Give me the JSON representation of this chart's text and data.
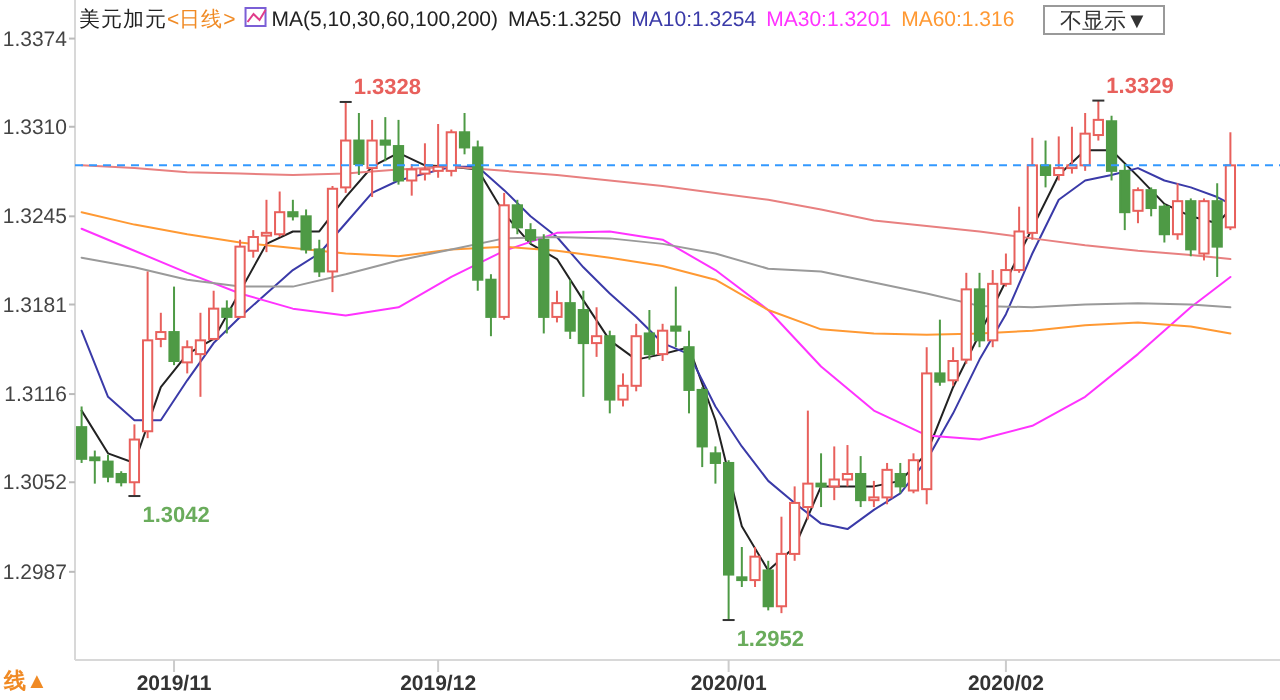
{
  "chart_data": {
    "type": "candlestick",
    "title": "美元加元",
    "subtitle": "<日线>",
    "legend_title": "MA(5,10,30,60,100,200)",
    "legend": "top",
    "grid": false,
    "categories": [
      null,
      null,
      null,
      null,
      null,
      null,
      null,
      "2019/11",
      null,
      null,
      null,
      null,
      null,
      null,
      null,
      null,
      null,
      null,
      null,
      null,
      null,
      null,
      null,
      null,
      null,
      null,
      null,
      "2019/12",
      null,
      null,
      null,
      null,
      null,
      null,
      null,
      null,
      null,
      null,
      null,
      null,
      null,
      null,
      null,
      null,
      null,
      null,
      null,
      null,
      null,
      "2020/01",
      null,
      null,
      null,
      null,
      null,
      null,
      null,
      null,
      null,
      null,
      null,
      null,
      null,
      null,
      null,
      null,
      null,
      null,
      null,
      null,
      "2020/02",
      null,
      null,
      null,
      null,
      null,
      null,
      null,
      null,
      null,
      null,
      null,
      null,
      null,
      null,
      null,
      null,
      null
    ],
    "ohlc": [
      [
        1.3092,
        1.3107,
        1.3066,
        1.3069
      ],
      [
        1.307,
        1.3075,
        1.3051,
        1.3068
      ],
      [
        1.3067,
        1.3072,
        1.3052,
        1.3056
      ],
      [
        1.3058,
        1.306,
        1.3049,
        1.3052
      ],
      [
        1.3052,
        1.3094,
        1.3042,
        1.3083
      ],
      [
        1.3089,
        1.3205,
        1.3084,
        1.3155
      ],
      [
        1.3156,
        1.3175,
        1.315,
        1.3161
      ],
      [
        1.3161,
        1.3194,
        1.3137,
        1.314
      ],
      [
        1.3139,
        1.3155,
        1.3131,
        1.315
      ],
      [
        1.3145,
        1.3175,
        1.3114,
        1.3155
      ],
      [
        1.3156,
        1.3191,
        1.3155,
        1.3178
      ],
      [
        1.3178,
        1.3184,
        1.316,
        1.3172
      ],
      [
        1.3172,
        1.3228,
        1.3171,
        1.3223
      ],
      [
        1.322,
        1.3235,
        1.3215,
        1.323
      ],
      [
        1.3231,
        1.3257,
        1.3219,
        1.3233
      ],
      [
        1.3232,
        1.3263,
        1.323,
        1.3248
      ],
      [
        1.3248,
        1.3257,
        1.3242,
        1.3245
      ],
      [
        1.3245,
        1.325,
        1.3218,
        1.3221
      ],
      [
        1.3221,
        1.3228,
        1.3201,
        1.3205
      ],
      [
        1.3205,
        1.3267,
        1.319,
        1.3265
      ],
      [
        1.3266,
        1.3328,
        1.3262,
        1.33
      ],
      [
        1.33,
        1.332,
        1.3275,
        1.3283
      ],
      [
        1.328,
        1.3315,
        1.3259,
        1.33
      ],
      [
        1.33,
        1.3317,
        1.3285,
        1.3297
      ],
      [
        1.3296,
        1.3315,
        1.3268,
        1.3271
      ],
      [
        1.3271,
        1.3283,
        1.326,
        1.3279
      ],
      [
        1.3276,
        1.3298,
        1.3271,
        1.3279
      ],
      [
        1.3278,
        1.3312,
        1.3273,
        1.3281
      ],
      [
        1.3278,
        1.3308,
        1.3274,
        1.3306
      ],
      [
        1.3306,
        1.332,
        1.329,
        1.3295
      ],
      [
        1.3295,
        1.33,
        1.3191,
        1.3199
      ],
      [
        1.3199,
        1.3203,
        1.3158,
        1.3172
      ],
      [
        1.3172,
        1.3262,
        1.317,
        1.3253
      ],
      [
        1.3253,
        1.3257,
        1.3232,
        1.3237
      ],
      [
        1.3235,
        1.324,
        1.3225,
        1.3228
      ],
      [
        1.3228,
        1.3232,
        1.316,
        1.3172
      ],
      [
        1.3172,
        1.3191,
        1.3168,
        1.3182
      ],
      [
        1.3182,
        1.3199,
        1.3156,
        1.3162
      ],
      [
        1.3177,
        1.3191,
        1.3114,
        1.3153
      ],
      [
        1.3153,
        1.3179,
        1.3143,
        1.3158
      ],
      [
        1.3158,
        1.3162,
        1.3102,
        1.3112
      ],
      [
        1.3112,
        1.3131,
        1.3107,
        1.3122
      ],
      [
        1.3122,
        1.3167,
        1.3118,
        1.3158
      ],
      [
        1.316,
        1.3177,
        1.3141,
        1.3145
      ],
      [
        1.3145,
        1.3167,
        1.314,
        1.3162
      ],
      [
        1.3165,
        1.3194,
        1.315,
        1.3162
      ],
      [
        1.315,
        1.3162,
        1.3102,
        1.3119
      ],
      [
        1.3119,
        1.3121,
        1.3063,
        1.3078
      ],
      [
        1.3073,
        1.3078,
        1.3051,
        1.3066
      ],
      [
        1.3066,
        1.3068,
        1.2952,
        1.2985
      ],
      [
        1.2983,
        1.3005,
        1.2976,
        1.2981
      ],
      [
        1.2981,
        1.3005,
        1.2976,
        1.2998
      ],
      [
        1.2988,
        1.2995,
        1.2959,
        1.2962
      ],
      [
        1.2962,
        1.3027,
        1.2957,
        1.3
      ],
      [
        1.3,
        1.3049,
        1.2995,
        1.3037
      ],
      [
        1.3034,
        1.3104,
        1.3025,
        1.3051
      ],
      [
        1.3051,
        1.3073,
        1.3034,
        1.3049
      ],
      [
        1.3049,
        1.3078,
        1.3039,
        1.3054
      ],
      [
        1.3054,
        1.3079,
        1.3049,
        1.3058
      ],
      [
        1.3058,
        1.3071,
        1.3034,
        1.3039
      ],
      [
        1.3039,
        1.3053,
        1.3034,
        1.3041
      ],
      [
        1.3041,
        1.3066,
        1.3036,
        1.3061
      ],
      [
        1.3058,
        1.3066,
        1.3044,
        1.3049
      ],
      [
        1.3046,
        1.3073,
        1.3044,
        1.3068
      ],
      [
        1.3047,
        1.315,
        1.3036,
        1.3131
      ],
      [
        1.3131,
        1.317,
        1.3122,
        1.3125
      ],
      [
        1.3126,
        1.315,
        1.3122,
        1.314
      ],
      [
        1.3141,
        1.3204,
        1.3138,
        1.3192
      ],
      [
        1.3192,
        1.3204,
        1.315,
        1.3155
      ],
      [
        1.3155,
        1.3206,
        1.315,
        1.3196
      ],
      [
        1.3196,
        1.3218,
        1.3194,
        1.3206
      ],
      [
        1.3206,
        1.3252,
        1.3204,
        1.3234
      ],
      [
        1.3233,
        1.3302,
        1.3228,
        1.3282
      ],
      [
        1.3282,
        1.33,
        1.3266,
        1.3275
      ],
      [
        1.3275,
        1.3303,
        1.3271,
        1.328
      ],
      [
        1.328,
        1.331,
        1.3276,
        1.3282
      ],
      [
        1.3282,
        1.332,
        1.3278,
        1.3305
      ],
      [
        1.3304,
        1.3329,
        1.33,
        1.3315
      ],
      [
        1.3314,
        1.3318,
        1.3271,
        1.3278
      ],
      [
        1.3278,
        1.3283,
        1.3235,
        1.3248
      ],
      [
        1.3249,
        1.3266,
        1.324,
        1.3264
      ],
      [
        1.3264,
        1.3266,
        1.3245,
        1.3251
      ],
      [
        1.3252,
        1.3254,
        1.3226,
        1.3232
      ],
      [
        1.3232,
        1.3269,
        1.3228,
        1.3256
      ],
      [
        1.3256,
        1.3258,
        1.3216,
        1.3221
      ],
      [
        1.3218,
        1.3258,
        1.3213,
        1.3256
      ],
      [
        1.3256,
        1.3269,
        1.3201,
        1.3223
      ],
      [
        1.3237,
        1.3306,
        1.3235,
        1.3282
      ]
    ],
    "series": [
      {
        "type": "line",
        "name": "MA5:1.3250",
        "color": "#222222",
        "values": [
          1.3104,
          null,
          1.3073,
          null,
          1.3066,
          null,
          1.3121,
          null,
          1.3145,
          null,
          1.3156,
          null,
          null,
          null,
          1.3225,
          null,
          1.3234,
          null,
          1.3234,
          null,
          1.3259,
          null,
          1.3281,
          null,
          1.3291,
          null,
          1.3282,
          null,
          1.3281,
          null,
          1.3279,
          null,
          1.3247,
          null,
          1.3225,
          null,
          1.3214,
          null,
          1.3184,
          null,
          1.3155,
          null,
          1.3141,
          null,
          1.3145,
          null,
          1.315,
          null,
          1.3097,
          null,
          1.302,
          null,
          1.2988,
          null,
          1.3005,
          null,
          1.3049,
          null,
          1.3049,
          null,
          1.3049,
          null,
          1.3053,
          null,
          1.3073,
          null,
          1.3121,
          null,
          null,
          null,
          null,
          null,
          null,
          null,
          1.3275,
          null,
          1.3293,
          null,
          1.3293,
          null,
          1.3274,
          null,
          1.3254,
          null,
          1.3245,
          null,
          1.324,
          1.325
        ]
      },
      {
        "type": "line",
        "name": "MA10:1.3254",
        "color": "#3a3aa8",
        "values": [
          1.3162,
          null,
          1.3114,
          null,
          1.3097,
          null,
          1.3097,
          null,
          1.3126,
          null,
          1.3153,
          null,
          1.3172,
          null,
          1.3189,
          null,
          1.3206,
          null,
          1.3218,
          null,
          1.324,
          null,
          1.3262,
          null,
          1.3271,
          null,
          1.3276,
          null,
          1.3281,
          null,
          1.3281,
          null,
          1.3264,
          null,
          1.3245,
          null,
          1.323,
          null,
          1.3208,
          null,
          1.3189,
          null,
          1.3172,
          null,
          1.3153,
          null,
          1.3145,
          null,
          1.3107,
          null,
          1.3078,
          null,
          1.3053,
          null,
          1.3037,
          null,
          1.3022,
          null,
          1.3018,
          null,
          1.3032,
          null,
          1.3044,
          null,
          1.3068,
          null,
          1.3102,
          null,
          1.3141,
          null,
          1.3174,
          null,
          1.3218,
          null,
          1.3257,
          null,
          1.3271,
          null,
          1.3275,
          null,
          1.328,
          null,
          1.3271,
          null,
          1.3266,
          null,
          1.3259,
          1.3254
        ]
      },
      {
        "type": "line",
        "name": "MA30:1.3201",
        "color": "#ff33ff",
        "values": [
          1.3236,
          null,
          null,
          null,
          1.322,
          null,
          null,
          null,
          1.3204,
          null,
          null,
          null,
          1.3189,
          null,
          null,
          null,
          1.3178,
          null,
          null,
          null,
          1.3173,
          null,
          null,
          null,
          1.3179,
          null,
          null,
          null,
          1.3201,
          null,
          null,
          null,
          1.322,
          null,
          null,
          null,
          1.3233,
          null,
          null,
          null,
          1.3234,
          null,
          null,
          null,
          1.3228,
          null,
          null,
          null,
          1.3206,
          null,
          null,
          null,
          1.3177,
          null,
          null,
          null,
          1.3136,
          null,
          null,
          null,
          1.3104,
          null,
          null,
          null,
          1.3086,
          null,
          null,
          null,
          1.3083,
          null,
          null,
          null,
          1.3093,
          null,
          null,
          null,
          1.3114,
          null,
          null,
          null,
          1.3145,
          null,
          null,
          null,
          1.3179,
          null,
          null,
          1.3201
        ]
      },
      {
        "type": "line",
        "name": "MA60:1.316",
        "color": "#ff9933",
        "values": [
          1.3248,
          null,
          null,
          null,
          1.3239,
          null,
          null,
          null,
          1.3232,
          null,
          null,
          null,
          1.3226,
          null,
          null,
          null,
          1.3222,
          null,
          null,
          null,
          1.3218,
          null,
          null,
          null,
          1.3216,
          null,
          null,
          null,
          1.3221,
          null,
          null,
          null,
          1.3223,
          null,
          null,
          null,
          1.322,
          null,
          null,
          null,
          1.3215,
          null,
          null,
          null,
          1.3209,
          null,
          null,
          null,
          1.3199,
          null,
          null,
          null,
          1.3177,
          null,
          null,
          null,
          1.3163,
          null,
          null,
          null,
          1.316,
          null,
          null,
          null,
          1.3159,
          null,
          null,
          null,
          1.316,
          null,
          null,
          null,
          1.3162,
          null,
          null,
          null,
          1.3166,
          null,
          null,
          null,
          1.3168,
          null,
          null,
          null,
          1.3165,
          null,
          null,
          1.316
        ]
      },
      {
        "type": "line",
        "color": "#9a9a9a",
        "values": [
          1.3215,
          null,
          null,
          null,
          1.3208,
          null,
          null,
          null,
          1.3199,
          null,
          null,
          null,
          1.3194,
          null,
          null,
          null,
          1.3194,
          null,
          null,
          null,
          1.3203,
          null,
          null,
          null,
          1.3213,
          null,
          null,
          null,
          1.3221,
          null,
          null,
          null,
          1.3229,
          null,
          null,
          null,
          1.323,
          null,
          null,
          null,
          1.3229,
          null,
          null,
          null,
          1.3225,
          null,
          null,
          null,
          1.3218,
          null,
          null,
          null,
          1.3207,
          null,
          null,
          null,
          1.3205,
          null,
          null,
          null,
          1.3197,
          null,
          null,
          null,
          1.3189,
          null,
          null,
          null,
          1.318,
          null,
          null,
          null,
          1.3179,
          null,
          null,
          null,
          1.3181,
          null,
          null,
          null,
          1.3182,
          null,
          null,
          null,
          1.3181,
          null,
          null,
          1.3179
        ]
      },
      {
        "type": "line",
        "color": "#e88080",
        "values": [
          1.3282,
          null,
          null,
          null,
          1.328,
          null,
          null,
          null,
          1.3277,
          null,
          null,
          null,
          1.3276,
          null,
          null,
          null,
          1.3275,
          null,
          null,
          null,
          1.3276,
          null,
          null,
          null,
          1.3279,
          null,
          null,
          null,
          1.3281,
          null,
          null,
          null,
          1.3278,
          null,
          null,
          null,
          1.3275,
          null,
          null,
          null,
          1.3271,
          null,
          null,
          null,
          1.3267,
          null,
          null,
          null,
          1.3262,
          null,
          null,
          null,
          1.3257,
          null,
          null,
          null,
          1.325,
          null,
          null,
          null,
          1.3242,
          null,
          null,
          null,
          1.3238,
          null,
          null,
          null,
          1.3234,
          null,
          null,
          null,
          1.3229,
          null,
          null,
          null,
          1.3224,
          null,
          null,
          null,
          1.322,
          null,
          null,
          null,
          1.3217,
          null,
          null,
          1.3214
        ]
      }
    ],
    "ylim": [
      1.2923,
      1.3402
    ],
    "yticks": [
      1.2987,
      1.3052,
      1.3116,
      1.3181,
      1.3245,
      {
        "value": 1.331,
        "label": "1.3310"
      },
      1.3374
    ],
    "ref_lines": [
      {
        "axis": "y",
        "value": 1.3282,
        "color": "#3399ff",
        "line_style": "dashed"
      }
    ],
    "annotations": [
      "1.3328",
      "1.3329",
      "1.3042",
      "1.2952",
      "线▲",
      "不显示▼"
    ]
  }
}
